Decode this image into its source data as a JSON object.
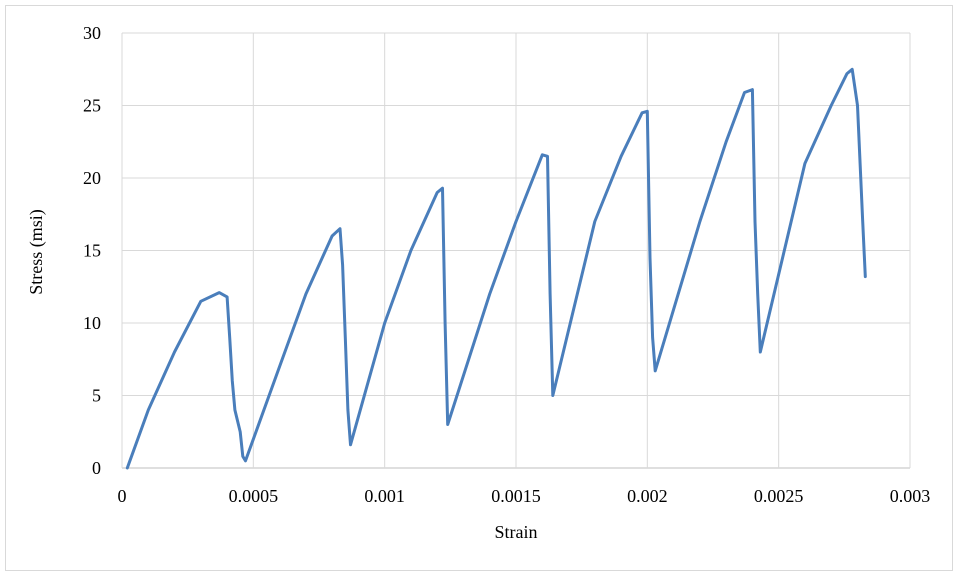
{
  "chart_data": {
    "type": "line",
    "title": "",
    "xlabel": "Strain",
    "ylabel": "Stress (msi)",
    "xlim": [
      0,
      0.003
    ],
    "ylim": [
      0,
      30
    ],
    "xticks": [
      0,
      0.0005,
      0.001,
      0.0015,
      0.002,
      0.0025,
      0.003
    ],
    "xtick_labels": [
      "0",
      "0.0005",
      "0.001",
      "0.0015",
      "0.002",
      "0.0025",
      "0.003"
    ],
    "yticks": [
      0,
      5,
      10,
      15,
      20,
      25,
      30
    ],
    "ytick_labels": [
      "0",
      "5",
      "10",
      "15",
      "20",
      "25",
      "30"
    ],
    "grid": true,
    "legend": "none",
    "line_color": "#4a7ebb",
    "series": [
      {
        "x": [
          2e-05,
          0.0001,
          0.0002,
          0.0003,
          0.00037,
          0.0004,
          0.00041,
          0.00042,
          0.00043,
          0.00045,
          0.00046,
          0.00047,
          0.0006,
          0.0007,
          0.0008,
          0.00083,
          0.00084,
          0.00085,
          0.00086,
          0.00087,
          0.001,
          0.0011,
          0.0012,
          0.00122,
          0.00123,
          0.00124,
          0.0014,
          0.0015,
          0.0016,
          0.00162,
          0.00163,
          0.00164,
          0.0018,
          0.0019,
          0.00198,
          0.002,
          0.00201,
          0.00202,
          0.00203,
          0.0022,
          0.0023,
          0.00237,
          0.0024,
          0.00241,
          0.00242,
          0.00243,
          0.0026,
          0.0027,
          0.00276,
          0.00278,
          0.0028,
          0.00282,
          0.00283
        ],
        "y": [
          0,
          4,
          8,
          11.5,
          12.1,
          11.8,
          9,
          6,
          4,
          2.5,
          0.8,
          0.5,
          7,
          12,
          16,
          16.5,
          14,
          9,
          4,
          1.6,
          10,
          15,
          19,
          19.3,
          10,
          3,
          12,
          17,
          21.6,
          21.5,
          12,
          5,
          17,
          21.5,
          24.5,
          24.6,
          14.5,
          9,
          6.7,
          17,
          22.5,
          25.9,
          26.1,
          17,
          12,
          8,
          21,
          25,
          27.2,
          27.5,
          25,
          17,
          13.2
        ]
      }
    ]
  }
}
